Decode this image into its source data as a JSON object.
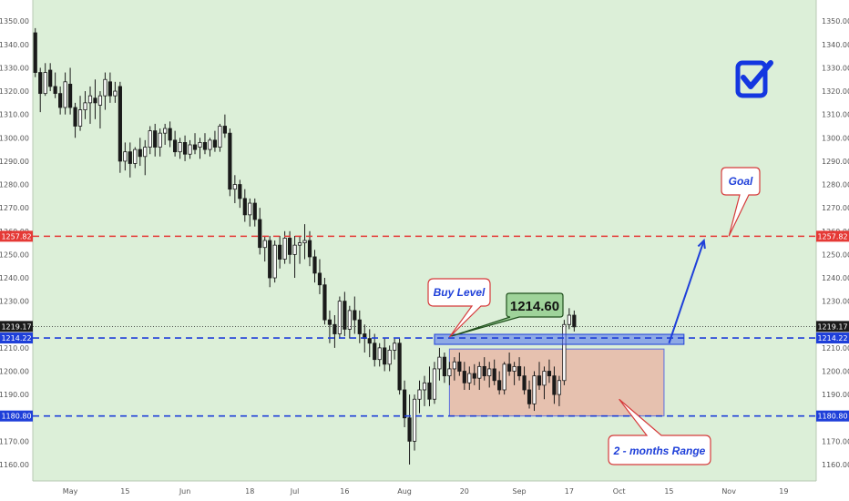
{
  "colors": {
    "plot_bg": "#dcefd8",
    "candle": "#1a1a1a",
    "resistance": "#e53935",
    "support": "#1e3fd9",
    "range_fill": "#e8b8a8",
    "range_border": "#5a6ee0",
    "callout_red": "#d63b3b",
    "goal_blue": "#1e3fd9",
    "price_box": "#9fd39a",
    "check_blue": "#1437e0"
  },
  "icons": {
    "checkmark": "check-square-icon"
  },
  "chart_data": {
    "type": "candlestick",
    "title": "",
    "xlabel": "",
    "ylabel": "",
    "ylim": [
      1150,
      1355
    ],
    "y_ticks": [
      1160,
      1170,
      1180,
      1190,
      1200,
      1210,
      1220,
      1230,
      1240,
      1250,
      1260,
      1270,
      1280,
      1290,
      1300,
      1310,
      1320,
      1330,
      1340,
      1350
    ],
    "y_tick_labels": [
      "1160.00",
      "1170.00",
      "1180.00",
      "1190.00",
      "1200.00",
      "1210.00",
      "1220.00",
      "1230.00",
      "1240.00",
      "1250.00",
      "1260.00",
      "1270.00",
      "1280.00",
      "1290.00",
      "1300.00",
      "1310.00",
      "1320.00",
      "1330.00",
      "1340.00",
      "1350.00"
    ],
    "x_tick_labels": [
      {
        "label": "May",
        "bar": 7
      },
      {
        "label": "15",
        "bar": 18
      },
      {
        "label": "Jun",
        "bar": 30
      },
      {
        "label": "18",
        "bar": 43
      },
      {
        "label": "Jul",
        "bar": 52
      },
      {
        "label": "16",
        "bar": 62
      },
      {
        "label": "Aug",
        "bar": 74
      },
      {
        "label": "20",
        "bar": 86
      },
      {
        "label": "Sep",
        "bar": 97
      },
      {
        "label": "17",
        "bar": 107
      },
      {
        "label": "Oct",
        "bar": 117
      },
      {
        "label": "15",
        "bar": 127
      },
      {
        "label": "Nov",
        "bar": 139
      },
      {
        "label": "19",
        "bar": 150
      }
    ],
    "bars_total": 157,
    "candles": [
      [
        1345,
        1347,
        1326,
        1328
      ],
      [
        1328,
        1330,
        1311,
        1319
      ],
      [
        1319,
        1332,
        1318,
        1328
      ],
      [
        1329,
        1332,
        1320,
        1322
      ],
      [
        1322,
        1328,
        1317,
        1319
      ],
      [
        1319,
        1322,
        1310,
        1313
      ],
      [
        1313,
        1328,
        1310,
        1324
      ],
      [
        1323,
        1330,
        1310,
        1313
      ],
      [
        1313,
        1315,
        1300,
        1305
      ],
      [
        1305,
        1318,
        1303,
        1312
      ],
      [
        1312,
        1320,
        1308,
        1315
      ],
      [
        1315,
        1322,
        1306,
        1318
      ],
      [
        1317,
        1325,
        1308,
        1315
      ],
      [
        1314,
        1320,
        1304,
        1318
      ],
      [
        1318,
        1328,
        1312,
        1325
      ],
      [
        1324,
        1328,
        1315,
        1318
      ],
      [
        1318,
        1324,
        1315,
        1320
      ],
      [
        1322,
        1324,
        1285,
        1290
      ],
      [
        1290,
        1298,
        1286,
        1294
      ],
      [
        1294,
        1298,
        1283,
        1289
      ],
      [
        1289,
        1296,
        1287,
        1295
      ],
      [
        1295,
        1300,
        1288,
        1292
      ],
      [
        1292,
        1299,
        1284,
        1296
      ],
      [
        1296,
        1305,
        1293,
        1303
      ],
      [
        1303,
        1306,
        1292,
        1296
      ],
      [
        1296,
        1304,
        1292,
        1302
      ],
      [
        1302,
        1306,
        1297,
        1304
      ],
      [
        1304,
        1307,
        1296,
        1299
      ],
      [
        1299,
        1303,
        1292,
        1294
      ],
      [
        1294,
        1300,
        1291,
        1298
      ],
      [
        1298,
        1301,
        1290,
        1293
      ],
      [
        1293,
        1299,
        1291,
        1297
      ],
      [
        1297,
        1302,
        1293,
        1295
      ],
      [
        1296,
        1300,
        1291,
        1298
      ],
      [
        1298,
        1302,
        1293,
        1295
      ],
      [
        1295,
        1300,
        1292,
        1299
      ],
      [
        1299,
        1303,
        1294,
        1296
      ],
      [
        1296,
        1306,
        1294,
        1305
      ],
      [
        1305,
        1310,
        1300,
        1302
      ],
      [
        1302,
        1304,
        1275,
        1278
      ],
      [
        1278,
        1284,
        1272,
        1280
      ],
      [
        1280,
        1282,
        1270,
        1274
      ],
      [
        1274,
        1278,
        1264,
        1267
      ],
      [
        1267,
        1274,
        1262,
        1272
      ],
      [
        1272,
        1274,
        1262,
        1265
      ],
      [
        1265,
        1270,
        1250,
        1253
      ],
      [
        1253,
        1258,
        1247,
        1256
      ],
      [
        1256,
        1258,
        1236,
        1240
      ],
      [
        1240,
        1256,
        1238,
        1254
      ],
      [
        1254,
        1258,
        1244,
        1248
      ],
      [
        1248,
        1260,
        1246,
        1257
      ],
      [
        1257,
        1260,
        1246,
        1250
      ],
      [
        1250,
        1258,
        1240,
        1254
      ],
      [
        1254,
        1258,
        1246,
        1255
      ],
      [
        1255,
        1263,
        1248,
        1256
      ],
      [
        1256,
        1260,
        1245,
        1249
      ],
      [
        1249,
        1252,
        1238,
        1242
      ],
      [
        1242,
        1248,
        1233,
        1237
      ],
      [
        1237,
        1240,
        1220,
        1222
      ],
      [
        1222,
        1226,
        1212,
        1220
      ],
      [
        1220,
        1224,
        1210,
        1216
      ],
      [
        1216,
        1232,
        1214,
        1230
      ],
      [
        1230,
        1234,
        1215,
        1218
      ],
      [
        1218,
        1228,
        1214,
        1226
      ],
      [
        1226,
        1232,
        1216,
        1222
      ],
      [
        1222,
        1226,
        1212,
        1216
      ],
      [
        1216,
        1220,
        1208,
        1214
      ],
      [
        1214,
        1218,
        1206,
        1212
      ],
      [
        1212,
        1216,
        1202,
        1205
      ],
      [
        1205,
        1212,
        1202,
        1210
      ],
      [
        1210,
        1214,
        1200,
        1203
      ],
      [
        1203,
        1211,
        1200,
        1209
      ],
      [
        1209,
        1214,
        1205,
        1212
      ],
      [
        1212,
        1214,
        1190,
        1192
      ],
      [
        1192,
        1196,
        1176,
        1180
      ],
      [
        1180,
        1190,
        1160,
        1170
      ],
      [
        1170,
        1190,
        1166,
        1188
      ],
      [
        1188,
        1196,
        1182,
        1192
      ],
      [
        1192,
        1198,
        1185,
        1195
      ],
      [
        1195,
        1202,
        1185,
        1188
      ],
      [
        1188,
        1204,
        1186,
        1201
      ],
      [
        1201,
        1210,
        1196,
        1206
      ],
      [
        1206,
        1208,
        1195,
        1198
      ],
      [
        1198,
        1204,
        1194,
        1201
      ],
      [
        1201,
        1206,
        1196,
        1204
      ],
      [
        1204,
        1208,
        1198,
        1200
      ],
      [
        1200,
        1204,
        1192,
        1195
      ],
      [
        1195,
        1202,
        1192,
        1199
      ],
      [
        1199,
        1203,
        1194,
        1197
      ],
      [
        1197,
        1204,
        1192,
        1202
      ],
      [
        1202,
        1206,
        1196,
        1198
      ],
      [
        1198,
        1204,
        1193,
        1201
      ],
      [
        1201,
        1205,
        1194,
        1196
      ],
      [
        1196,
        1200,
        1190,
        1192
      ],
      [
        1192,
        1204,
        1190,
        1203
      ],
      [
        1203,
        1208,
        1198,
        1200
      ],
      [
        1200,
        1204,
        1194,
        1202
      ],
      [
        1202,
        1206,
        1196,
        1198
      ],
      [
        1198,
        1202,
        1190,
        1192
      ],
      [
        1192,
        1196,
        1184,
        1186
      ],
      [
        1186,
        1200,
        1183,
        1198
      ],
      [
        1198,
        1204,
        1192,
        1194
      ],
      [
        1194,
        1202,
        1188,
        1200
      ],
      [
        1200,
        1205,
        1195,
        1198
      ],
      [
        1198,
        1202,
        1186,
        1190
      ],
      [
        1190,
        1198,
        1185,
        1196
      ],
      [
        1196,
        1222,
        1194,
        1220
      ],
      [
        1220,
        1227,
        1218,
        1224
      ],
      [
        1224,
        1226,
        1217,
        1219
      ]
    ],
    "levels": [
      {
        "name": "resistance",
        "value": 1257.82,
        "label": "1257.82",
        "style": "dashed"
      },
      {
        "name": "buy-level",
        "value": 1214.22,
        "label": "1214.22",
        "style": "dashed"
      },
      {
        "name": "range-low",
        "value": 1180.8,
        "label": "1180.80",
        "style": "dashed"
      },
      {
        "name": "last-price",
        "value": 1219.17,
        "label": "1219.17",
        "style": "dotted"
      }
    ],
    "range_box": {
      "bar_start": 83,
      "bar_end": 126,
      "low": 1180.8,
      "high": 1209.5
    },
    "buy_zone": {
      "bar_start": 80,
      "bar_end": 130,
      "low": 1211.5,
      "high": 1215.8
    },
    "goal_arrow": {
      "from_bar": 127,
      "from_price": 1212,
      "to_bar": 134,
      "to_price": 1256
    },
    "annotations": [
      {
        "name": "buy-level-callout",
        "text": "Buy Level"
      },
      {
        "name": "price-callout",
        "text": "1214.60"
      },
      {
        "name": "goal-callout",
        "text": "Goal"
      },
      {
        "name": "range-callout",
        "text": "2 - months Range"
      }
    ]
  }
}
